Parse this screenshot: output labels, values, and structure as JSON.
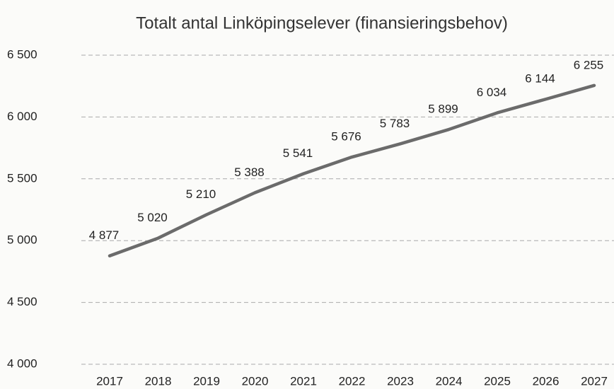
{
  "chart_data": {
    "type": "line",
    "title": "Totalt antal Linköpingselever (finansieringsbehov)",
    "categories": [
      "2017",
      "2018",
      "2019",
      "2020",
      "2021",
      "2022",
      "2023",
      "2024",
      "2025",
      "2026",
      "2027"
    ],
    "series": [
      {
        "color": "#6b6b6b",
        "values": [
          4877,
          5020,
          5210,
          5388,
          5541,
          5676,
          5783,
          5899,
          6034,
          6144,
          6255
        ],
        "value_labels": [
          "4 877",
          "5 020",
          "5 210",
          "5 388",
          "5 541",
          "5 676",
          "5 783",
          "5 899",
          "6 034",
          "6 144",
          "6 255"
        ]
      }
    ],
    "ylim": [
      4000,
      6500
    ],
    "yticks": [
      {
        "value": 4000,
        "label": "4 000"
      },
      {
        "value": 4500,
        "label": "4 500"
      },
      {
        "value": 5000,
        "label": "5 000"
      },
      {
        "value": 5500,
        "label": "5 500"
      },
      {
        "value": 6000,
        "label": "6 000"
      },
      {
        "value": 6500,
        "label": "6 500"
      }
    ],
    "grid": true
  }
}
